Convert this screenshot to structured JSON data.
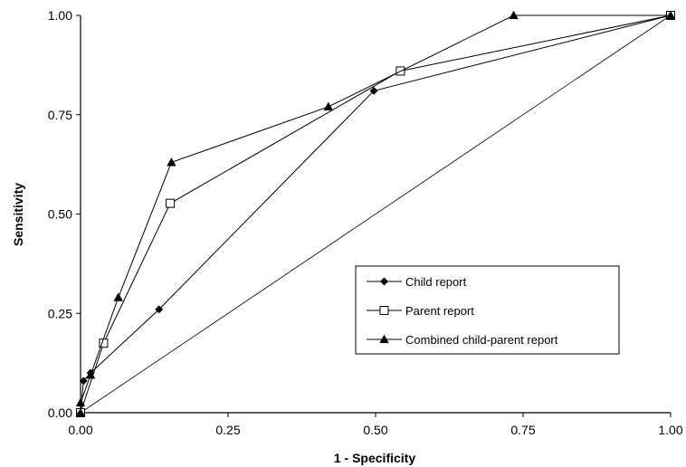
{
  "chart_data": {
    "type": "line",
    "xlabel": "1 - Specificity",
    "ylabel": "Sensitivity",
    "xlim": [
      0,
      1
    ],
    "ylim": [
      0,
      1
    ],
    "x_ticks": [
      "0.00",
      "0.25",
      "0.50",
      "0.75",
      "1.00"
    ],
    "y_ticks": [
      "0.00",
      "0.25",
      "0.50",
      "0.75",
      "1.00"
    ],
    "grid": false,
    "legend_position": "lower-right",
    "reference_line": {
      "x": [
        0,
        1
      ],
      "y": [
        0,
        1
      ]
    },
    "series": [
      {
        "name": "Child report",
        "marker": "diamond",
        "x": [
          0.0,
          0.005,
          0.017,
          0.133,
          0.497,
          1.0
        ],
        "y": [
          0.0,
          0.08,
          0.1,
          0.26,
          0.81,
          1.0
        ]
      },
      {
        "name": "Parent report",
        "marker": "open-square",
        "x": [
          0.0,
          0.039,
          0.152,
          0.542,
          1.0
        ],
        "y": [
          0.0,
          0.175,
          0.527,
          0.86,
          1.0
        ]
      },
      {
        "name": "Combined child-parent report",
        "marker": "triangle",
        "x": [
          0.0,
          0.0,
          0.017,
          0.064,
          0.154,
          0.42,
          0.734,
          1.0
        ],
        "y": [
          0.0,
          0.025,
          0.095,
          0.29,
          0.63,
          0.77,
          1.0,
          1.0
        ]
      }
    ]
  }
}
